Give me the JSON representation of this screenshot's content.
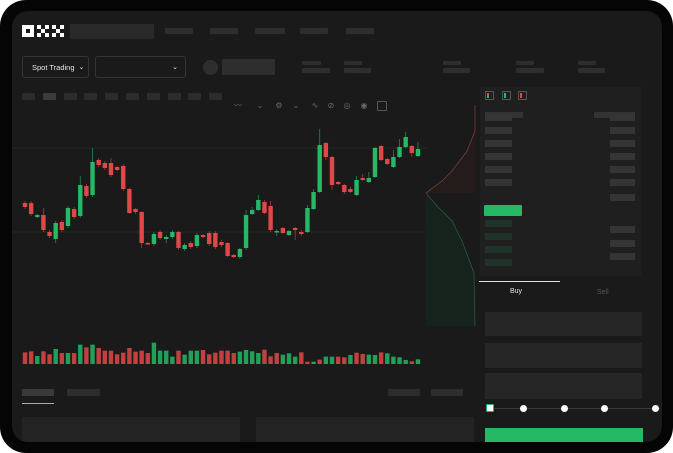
{
  "header": {
    "logo": "OKX"
  },
  "market_bar": {
    "mode_button": "Spot Trading"
  },
  "order_form": {
    "tabs": [
      "Buy",
      "Sell"
    ],
    "active_tab": "Buy",
    "slider_percent": 0
  },
  "colors": {
    "up": "#25b865",
    "down": "#e04848",
    "background": "#1a1a1a",
    "panel": "#1f1f1f"
  },
  "chart_data": {
    "type": "candlestick",
    "candles": [
      [
        97,
        99,
        91,
        93
      ],
      [
        97,
        99,
        84,
        86
      ],
      [
        83,
        86,
        82,
        85
      ],
      [
        85,
        92,
        68,
        70
      ],
      [
        68,
        70,
        62,
        64
      ],
      [
        61,
        79,
        57,
        77
      ],
      [
        78,
        80,
        68,
        70
      ],
      [
        74,
        94,
        72,
        92
      ],
      [
        91,
        93,
        81,
        83
      ],
      [
        84,
        124,
        82,
        115
      ],
      [
        114,
        116,
        102,
        104
      ],
      [
        105,
        152,
        103,
        138
      ],
      [
        140,
        142,
        133,
        135
      ],
      [
        137,
        139,
        130,
        132
      ],
      [
        137,
        142,
        123,
        125
      ],
      [
        133,
        134,
        129,
        130
      ],
      [
        134,
        136,
        109,
        111
      ],
      [
        111,
        112,
        86,
        87
      ],
      [
        91,
        92,
        86,
        88
      ],
      [
        88,
        89,
        52,
        57
      ],
      [
        57,
        58,
        55,
        56
      ],
      [
        56,
        68,
        54,
        66
      ],
      [
        68,
        70,
        60,
        62
      ],
      [
        61,
        65,
        57,
        63
      ],
      [
        63,
        70,
        61,
        68
      ],
      [
        68,
        69,
        50,
        52
      ],
      [
        51,
        57,
        49,
        55
      ],
      [
        57,
        59,
        51,
        53
      ],
      [
        54,
        67,
        52,
        65
      ],
      [
        65,
        66,
        62,
        63
      ],
      [
        67,
        69,
        54,
        56
      ],
      [
        67,
        69,
        51,
        53
      ],
      [
        58,
        60,
        53,
        55
      ],
      [
        57,
        58,
        43,
        44
      ],
      [
        45,
        46,
        42,
        43
      ],
      [
        43,
        52,
        41,
        51
      ],
      [
        52,
        90,
        50,
        85
      ],
      [
        86,
        93,
        85,
        90
      ],
      [
        90,
        105,
        89,
        100
      ],
      [
        98,
        100,
        86,
        87
      ],
      [
        94,
        99,
        68,
        70
      ],
      [
        68,
        71,
        64,
        69
      ],
      [
        72,
        73,
        66,
        67
      ],
      [
        65,
        70,
        64,
        69
      ],
      [
        72,
        73,
        60,
        70
      ],
      [
        68,
        70,
        64,
        66
      ],
      [
        68,
        95,
        67,
        92
      ],
      [
        91,
        111,
        90,
        108
      ],
      [
        108,
        171,
        107,
        155
      ],
      [
        157,
        158,
        140,
        143
      ],
      [
        143,
        144,
        110,
        115
      ],
      [
        118,
        119,
        115,
        116
      ],
      [
        115,
        116,
        106,
        108
      ],
      [
        111,
        113,
        107,
        108
      ],
      [
        105,
        124,
        104,
        120
      ],
      [
        122,
        126,
        119,
        120
      ],
      [
        118,
        128,
        117,
        122
      ],
      [
        123,
        153,
        122,
        152
      ],
      [
        154,
        155,
        139,
        140
      ],
      [
        141,
        142,
        135,
        136
      ],
      [
        133,
        150,
        132,
        143
      ],
      [
        143,
        161,
        142,
        153
      ],
      [
        153,
        168,
        152,
        163
      ],
      [
        154,
        155,
        143,
        147
      ],
      [
        144,
        158,
        143,
        151
      ]
    ],
    "volume": [
      35,
      38,
      24,
      38,
      29,
      45,
      33,
      33,
      33,
      58,
      50,
      58,
      48,
      40,
      40,
      29,
      34,
      48,
      37,
      40,
      33,
      64,
      40,
      40,
      22,
      40,
      28,
      40,
      40,
      42,
      29,
      34,
      40,
      40,
      33,
      37,
      42,
      38,
      33,
      43,
      23,
      33,
      28,
      32,
      22,
      35,
      7,
      7,
      13,
      22,
      22,
      22,
      20,
      27,
      34,
      30,
      28,
      27,
      35,
      32,
      22,
      20,
      12,
      8,
      14
    ],
    "volume_up": [
      0,
      0,
      1,
      0,
      0,
      1,
      0,
      1,
      0,
      1,
      0,
      1,
      0,
      0,
      0,
      0,
      0,
      0,
      0,
      0,
      0,
      1,
      1,
      1,
      1,
      0,
      1,
      1,
      1,
      0,
      0,
      0,
      0,
      0,
      0,
      1,
      1,
      1,
      1,
      0,
      0,
      0,
      1,
      1,
      1,
      0,
      0,
      1,
      0,
      1,
      1,
      0,
      0,
      1,
      0,
      0,
      1,
      1,
      0,
      1,
      1,
      1,
      1,
      0,
      1
    ],
    "grid": true,
    "axes_labels": false
  }
}
